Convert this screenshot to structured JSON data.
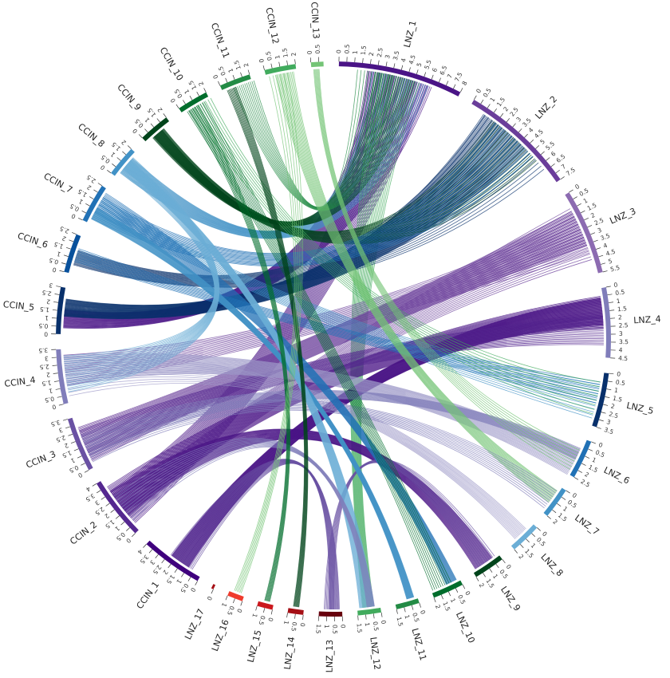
{
  "chromosomes": [
    {
      "id": "LNZ_1",
      "label": "LNZ_1",
      "size": 8,
      "step": 0.5,
      "color": "#4a1486"
    },
    {
      "id": "LNZ_2",
      "label": "LNZ_2",
      "size": 7.5,
      "step": 0.5,
      "color": "#6a3d9a"
    },
    {
      "id": "LNZ_3",
      "label": "LNZ_3",
      "size": 5.5,
      "step": 0.5,
      "color": "#8c6bb1"
    },
    {
      "id": "LNZ_4",
      "label": "LNZ_4",
      "size": 4.5,
      "step": 0.5,
      "color": "#807dba"
    },
    {
      "id": "LNZ_5",
      "label": "LNZ_5",
      "size": 3.5,
      "step": 0.5,
      "color": "#08306b"
    },
    {
      "id": "LNZ_6",
      "label": "LNZ_6",
      "size": 2.5,
      "step": 0.5,
      "color": "#2171b5"
    },
    {
      "id": "LNZ_7",
      "label": "LNZ_7",
      "size": 2,
      "step": 0.5,
      "color": "#4292c6"
    },
    {
      "id": "LNZ_8",
      "label": "LNZ_8",
      "size": 2,
      "step": 0.5,
      "color": "#6baed6"
    },
    {
      "id": "LNZ_9",
      "label": "LNZ_9",
      "size": 2,
      "step": 0.5,
      "color": "#00441b"
    },
    {
      "id": "LNZ_10",
      "label": "LNZ_10",
      "size": 2,
      "step": 0.5,
      "color": "#006d2c"
    },
    {
      "id": "LNZ_11",
      "label": "LNZ_11",
      "size": 1.5,
      "step": 0.5,
      "color": "#238b45"
    },
    {
      "id": "LNZ_12",
      "label": "LNZ_12",
      "size": 1.5,
      "step": 0.5,
      "color": "#41ab5d"
    },
    {
      "id": "LNZ_13",
      "label": "LNZ_13",
      "size": 1.5,
      "step": 0.5,
      "color": "#67000d"
    },
    {
      "id": "LNZ_14",
      "label": "LNZ_14",
      "size": 1,
      "step": 0.5,
      "color": "#a50f15"
    },
    {
      "id": "LNZ_15",
      "label": "LNZ_15",
      "size": 1,
      "step": 0.5,
      "color": "#cb181d"
    },
    {
      "id": "LNZ_16",
      "label": "LNZ_16",
      "size": 1,
      "step": 0.5,
      "color": "#ef3b2c"
    },
    {
      "id": "LNZ_17",
      "label": "LNZ_17",
      "size": 0.1,
      "step": 0.5,
      "color": "#a50f15"
    },
    {
      "id": "CCIN_1",
      "label": "CCIN_1",
      "size": 4,
      "step": 0.5,
      "color": "#3f007d"
    },
    {
      "id": "CCIN_2",
      "label": "CCIN_2",
      "size": 4,
      "step": 0.5,
      "color": "#54278f"
    },
    {
      "id": "CCIN_3",
      "label": "CCIN_3",
      "size": 3.5,
      "step": 0.5,
      "color": "#6a51a3"
    },
    {
      "id": "CCIN_4",
      "label": "CCIN_4",
      "size": 3.5,
      "step": 0.5,
      "color": "#807dba"
    },
    {
      "id": "CCIN_5",
      "label": "CCIN_5",
      "size": 3,
      "step": 0.5,
      "color": "#08306b"
    },
    {
      "id": "CCIN_6",
      "label": "CCIN_6",
      "size": 2.5,
      "step": 0.5,
      "color": "#08519c"
    },
    {
      "id": "CCIN_7",
      "label": "CCIN_7",
      "size": 2.5,
      "step": 0.5,
      "color": "#2171b5"
    },
    {
      "id": "CCIN_8",
      "label": "CCIN_8",
      "size": 2,
      "step": 0.5,
      "color": "#4292c6"
    },
    {
      "id": "CCIN_9",
      "label": "CCIN_9",
      "size": 2,
      "step": 0.5,
      "color": "#00441b"
    },
    {
      "id": "CCIN_10",
      "label": "CCIN_10",
      "size": 2,
      "step": 0.5,
      "color": "#006d2c"
    },
    {
      "id": "CCIN_11",
      "label": "CCIN_11",
      "size": 2,
      "step": 0.5,
      "color": "#238b45"
    },
    {
      "id": "CCIN_12",
      "label": "CCIN_12",
      "size": 2,
      "step": 0.5,
      "color": "#41ab5d"
    },
    {
      "id": "CCIN_13",
      "label": "CCIN_13",
      "size": 0.8,
      "step": 0.5,
      "color": "#74c476"
    }
  ],
  "links": [
    {
      "from": "LNZ_1",
      "to": "CCIN_5",
      "count": 40,
      "color": "#4a1486"
    },
    {
      "from": "LNZ_1",
      "to": "CCIN_2",
      "count": 30,
      "color": "#4a1486"
    },
    {
      "from": "LNZ_1",
      "to": "CCIN_8",
      "count": 25,
      "color": "#4292c6"
    },
    {
      "from": "LNZ_1",
      "to": "CCIN_9",
      "count": 20,
      "color": "#00441b"
    },
    {
      "from": "LNZ_1",
      "to": "LNZ_12",
      "count": 18,
      "color": "#41ab5d"
    },
    {
      "from": "LNZ_1",
      "to": "CCIN_11",
      "count": 12,
      "color": "#238b45"
    },
    {
      "from": "LNZ_2",
      "to": "CCIN_5",
      "count": 45,
      "color": "#08306b"
    },
    {
      "from": "LNZ_2",
      "to": "CCIN_9",
      "count": 25,
      "color": "#00441b"
    },
    {
      "from": "LNZ_2",
      "to": "CCIN_6",
      "count": 20,
      "color": "#08306b"
    },
    {
      "from": "LNZ_2",
      "to": "CCIN_7",
      "count": 15,
      "color": "#2171b5"
    },
    {
      "from": "LNZ_3",
      "to": "CCIN_3",
      "count": 35,
      "color": "#6a3d9a"
    },
    {
      "from": "LNZ_3",
      "to": "CCIN_2",
      "count": 20,
      "color": "#6a3d9a"
    },
    {
      "from": "LNZ_3",
      "to": "CCIN_4",
      "count": 15,
      "color": "#6a3d9a"
    },
    {
      "from": "LNZ_4",
      "to": "CCIN_1",
      "count": 50,
      "color": "#4a1486"
    },
    {
      "from": "LNZ_4",
      "to": "CCIN_2",
      "count": 30,
      "color": "#4a1486"
    },
    {
      "from": "LNZ_4",
      "to": "CCIN_3",
      "count": 20,
      "color": "#54278f"
    },
    {
      "from": "LNZ_5",
      "to": "CCIN_7",
      "count": 12,
      "color": "#4292c6"
    },
    {
      "from": "LNZ_5",
      "to": "CCIN_6",
      "count": 10,
      "color": "#2171b5"
    },
    {
      "from": "LNZ_5",
      "to": "CCIN_10",
      "count": 8,
      "color": "#41ab5d"
    },
    {
      "from": "LNZ_6",
      "to": "CCIN_4",
      "count": 25,
      "color": "#9e9ac8"
    },
    {
      "from": "LNZ_6",
      "to": "CCIN_3",
      "count": 15,
      "color": "#807dba"
    },
    {
      "from": "LNZ_7",
      "to": "CCIN_12",
      "count": 15,
      "color": "#74c476"
    },
    {
      "from": "LNZ_7",
      "to": "CCIN_3",
      "count": 10,
      "color": "#807dba"
    },
    {
      "from": "LNZ_8",
      "to": "CCIN_4",
      "count": 12,
      "color": "#9e9ac8"
    },
    {
      "from": "LNZ_9",
      "to": "CCIN_2",
      "count": 30,
      "color": "#4a1486"
    },
    {
      "from": "LNZ_9",
      "to": "LNZ_13",
      "count": 10,
      "color": "#6a51a3"
    },
    {
      "from": "LNZ_10",
      "to": "CCIN_7",
      "count": 20,
      "color": "#2171b5"
    },
    {
      "from": "LNZ_10",
      "to": "CCIN_10",
      "count": 10,
      "color": "#006d2c"
    },
    {
      "from": "LNZ_11",
      "to": "CCIN_7",
      "count": 25,
      "color": "#4292c6"
    },
    {
      "from": "LNZ_12",
      "to": "CCIN_8",
      "count": 25,
      "color": "#6baed6"
    },
    {
      "from": "LNZ_12",
      "to": "CCIN_2",
      "count": 12,
      "color": "#807dba"
    },
    {
      "from": "LNZ_13",
      "to": "CCIN_1",
      "count": 18,
      "color": "#6a51a3"
    },
    {
      "from": "LNZ_14",
      "to": "CCIN_11",
      "count": 10,
      "color": "#00441b"
    },
    {
      "from": "LNZ_15",
      "to": "CCIN_10",
      "count": 8,
      "color": "#006d2c"
    },
    {
      "from": "LNZ_16",
      "to": "CCIN_12",
      "count": 6,
      "color": "#74c476"
    },
    {
      "from": "CCIN_8",
      "to": "CCIN_4",
      "count": 20,
      "color": "#6baed6"
    },
    {
      "from": "LNZ_6",
      "to": "CCIN_13",
      "count": 8,
      "color": "#74c476"
    }
  ]
}
